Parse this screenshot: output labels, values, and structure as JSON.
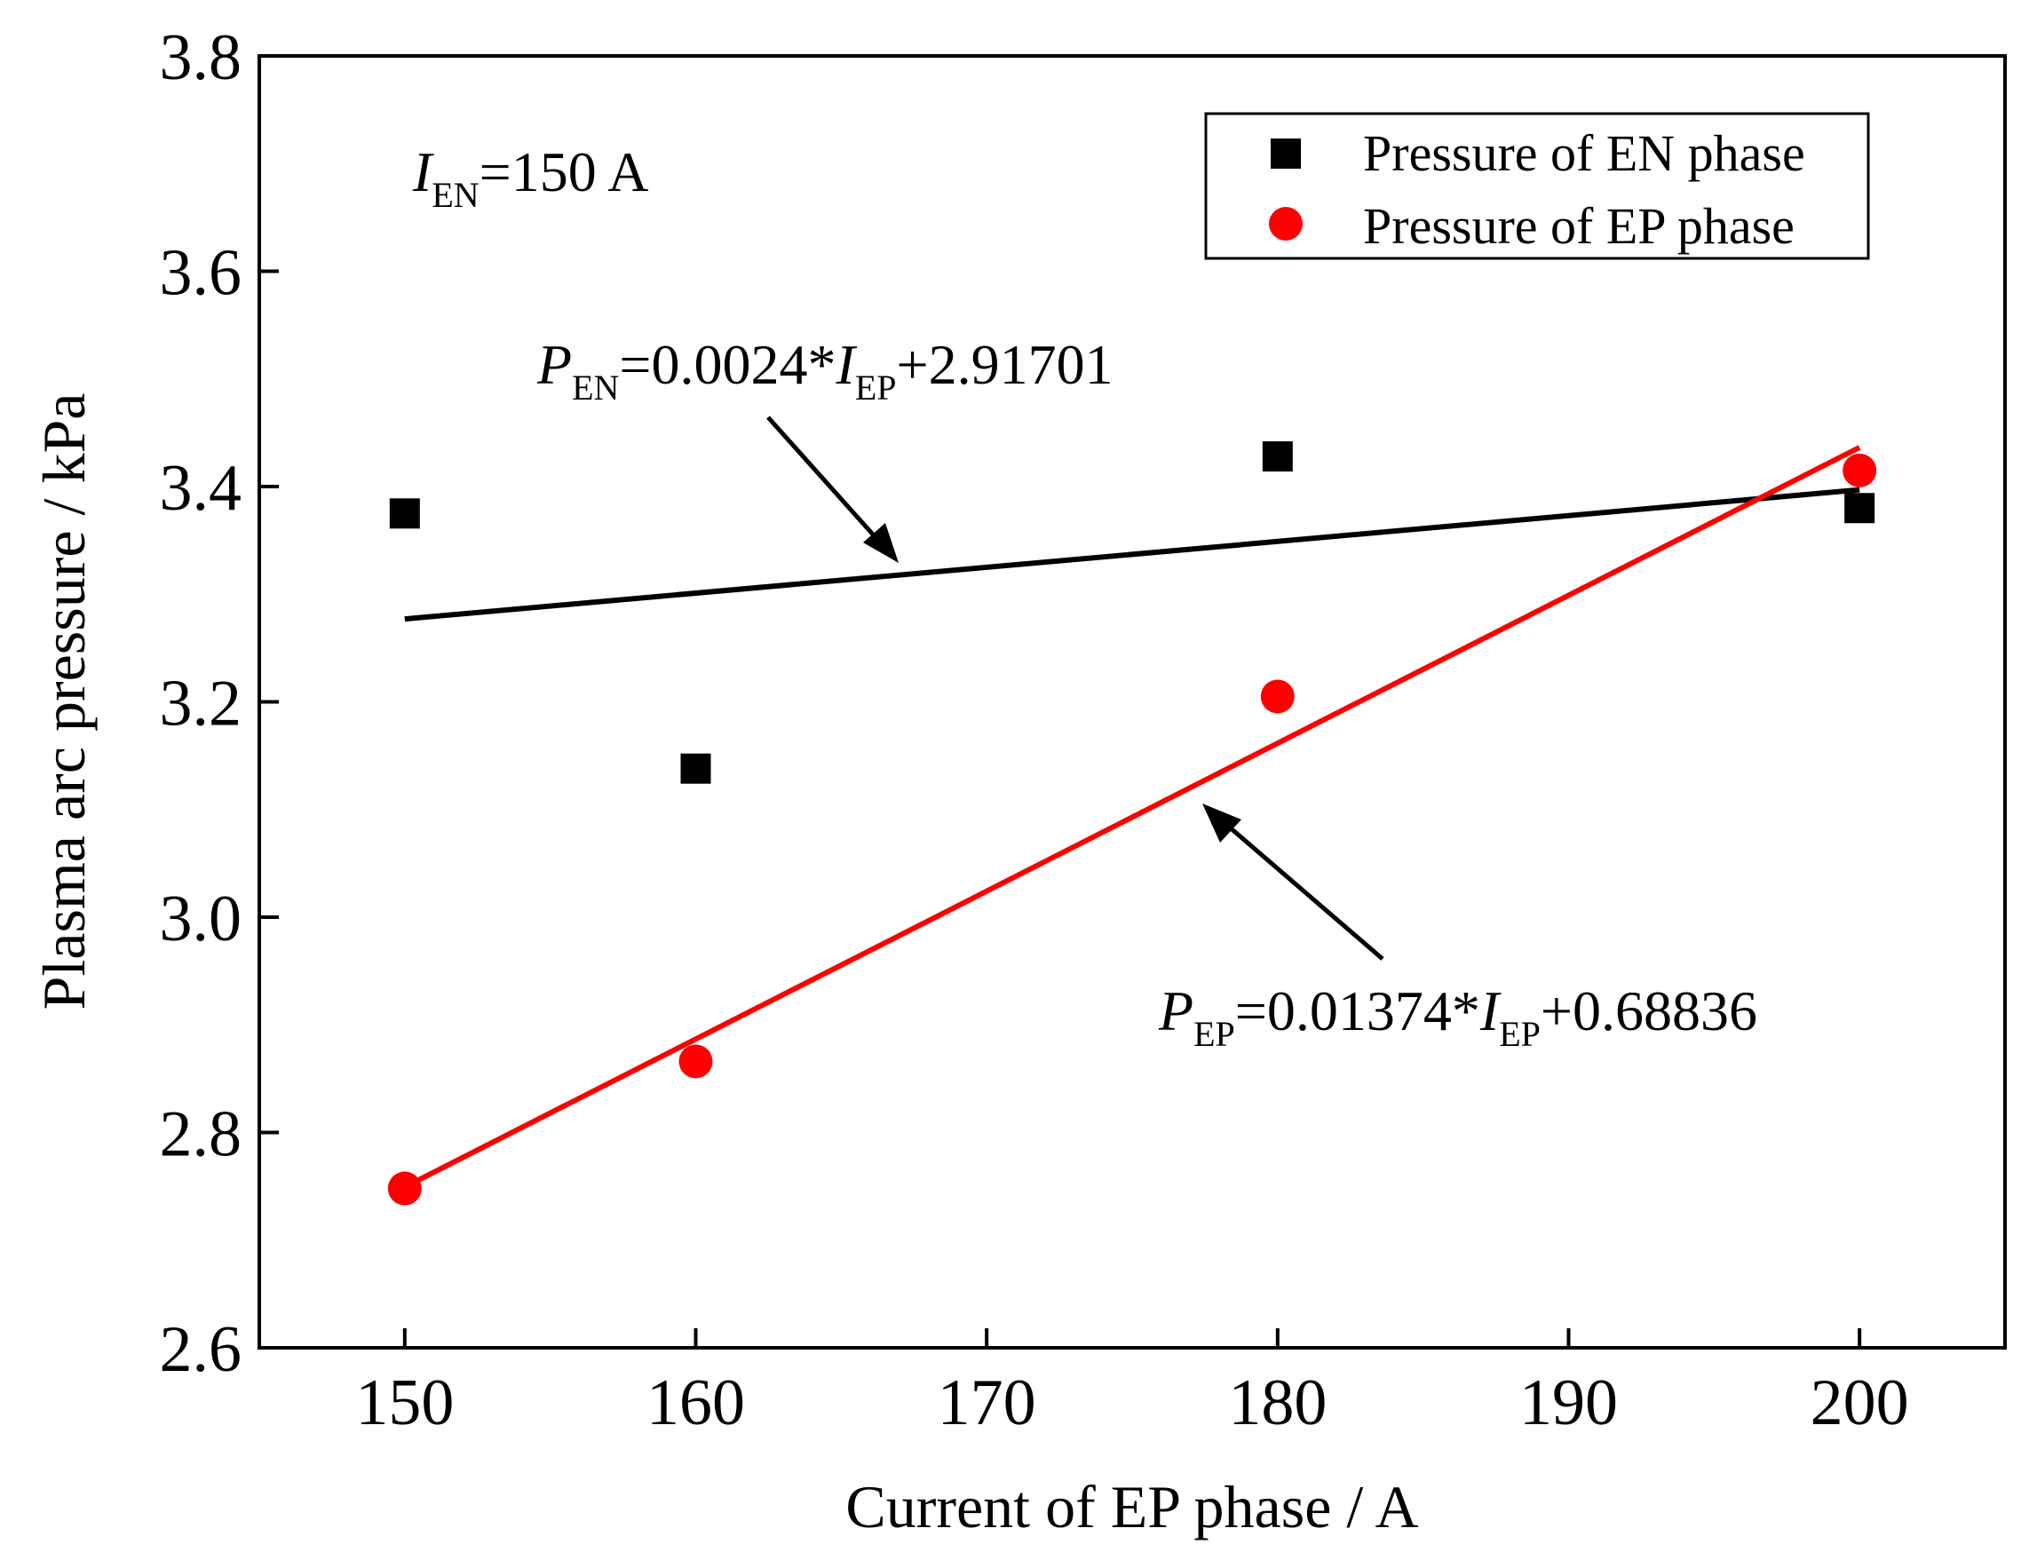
{
  "chart_data": {
    "type": "scatter",
    "title": "",
    "xlabel": "Current of EP phase / A",
    "ylabel": "Plasma arc pressure / kPa",
    "xlim": [
      145,
      205
    ],
    "ylim": [
      2.6,
      3.8
    ],
    "xticks": [
      150,
      160,
      170,
      180,
      190,
      200
    ],
    "yticks": [
      2.6,
      2.8,
      3.0,
      3.2,
      3.4,
      3.6,
      3.8
    ],
    "xtick_labels": [
      "150",
      "160",
      "170",
      "180",
      "190",
      "200"
    ],
    "ytick_labels": [
      "2.6",
      "2.8",
      "3.0",
      "3.2",
      "3.4",
      "3.6",
      "3.8"
    ],
    "grid": false,
    "legend_position": "top-right",
    "series": [
      {
        "name": "Pressure of EN phase",
        "marker": "square",
        "color": "#000000",
        "x": [
          150,
          160,
          180,
          200
        ],
        "y": [
          3.375,
          3.138,
          3.428,
          3.38
        ],
        "fit": {
          "slope": 0.0024,
          "intercept": 2.91701,
          "x_range": [
            150,
            200
          ]
        }
      },
      {
        "name": "Pressure of EP phase",
        "marker": "circle",
        "color": "#ff0000",
        "x": [
          150,
          160,
          180,
          200
        ],
        "y": [
          2.748,
          2.866,
          3.205,
          3.415
        ],
        "fit": {
          "slope": 0.01374,
          "intercept": 0.68836,
          "x_range": [
            150,
            200
          ]
        }
      }
    ],
    "annotations": {
      "condition": {
        "var": "I",
        "sub": "EN",
        "text": "=150 A"
      },
      "en_equation": {
        "var": "P",
        "sub": "EN",
        "mid": "=0.0024*",
        "var2": "I",
        "sub2": "EP",
        "tail": "+2.91701"
      },
      "ep_equation": {
        "var": "P",
        "sub": "EP",
        "mid": "=0.01374*",
        "var2": "I",
        "sub2": "EP",
        "tail": "+0.68836"
      }
    }
  }
}
